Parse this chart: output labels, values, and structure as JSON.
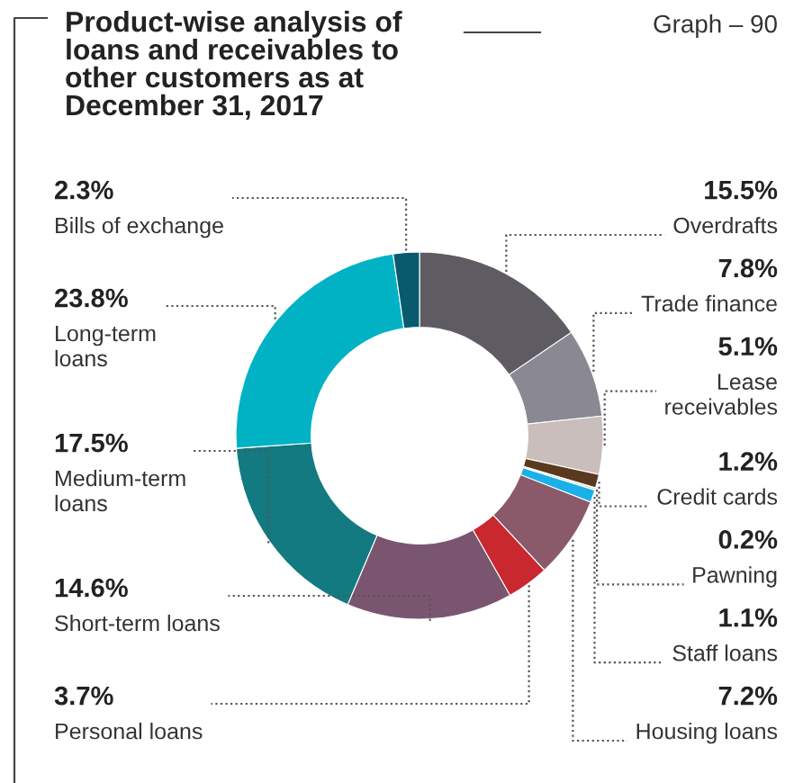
{
  "chart_data": {
    "type": "donut",
    "title": "Product-wise analysis of\nloans and receivables to\nother customers as at\nDecember 31, 2017",
    "annotations": [
      "Graph – 90"
    ],
    "categories": [
      "Overdrafts",
      "Trade finance",
      "Lease\nreceivables",
      "Credit cards",
      "Pawning",
      "Staff loans",
      "Housing loans",
      "Personal loans",
      "Short-term loans",
      "Medium-term\nloans",
      "Long-term\nloans",
      "Bills of exchange"
    ],
    "values": [
      15.5,
      7.8,
      5.1,
      1.2,
      0.2,
      1.1,
      7.2,
      3.7,
      14.6,
      17.5,
      23.8,
      2.3
    ],
    "value_labels": [
      "15.5%",
      "7.8%",
      "5.1%",
      "1.2%",
      "0.2%",
      "1.1%",
      "7.2%",
      "3.7%",
      "14.6%",
      "17.5%",
      "23.8%",
      "2.3%"
    ],
    "colors": [
      "#5e5b62",
      "#8a8993",
      "#c9bebc",
      "#5a3a1e",
      "#dddddd",
      "#1ab0e8",
      "#8a5a6a",
      "#c8282e",
      "#7a5570",
      "#127a80",
      "#00b2c4",
      "#0a5a6e"
    ]
  }
}
